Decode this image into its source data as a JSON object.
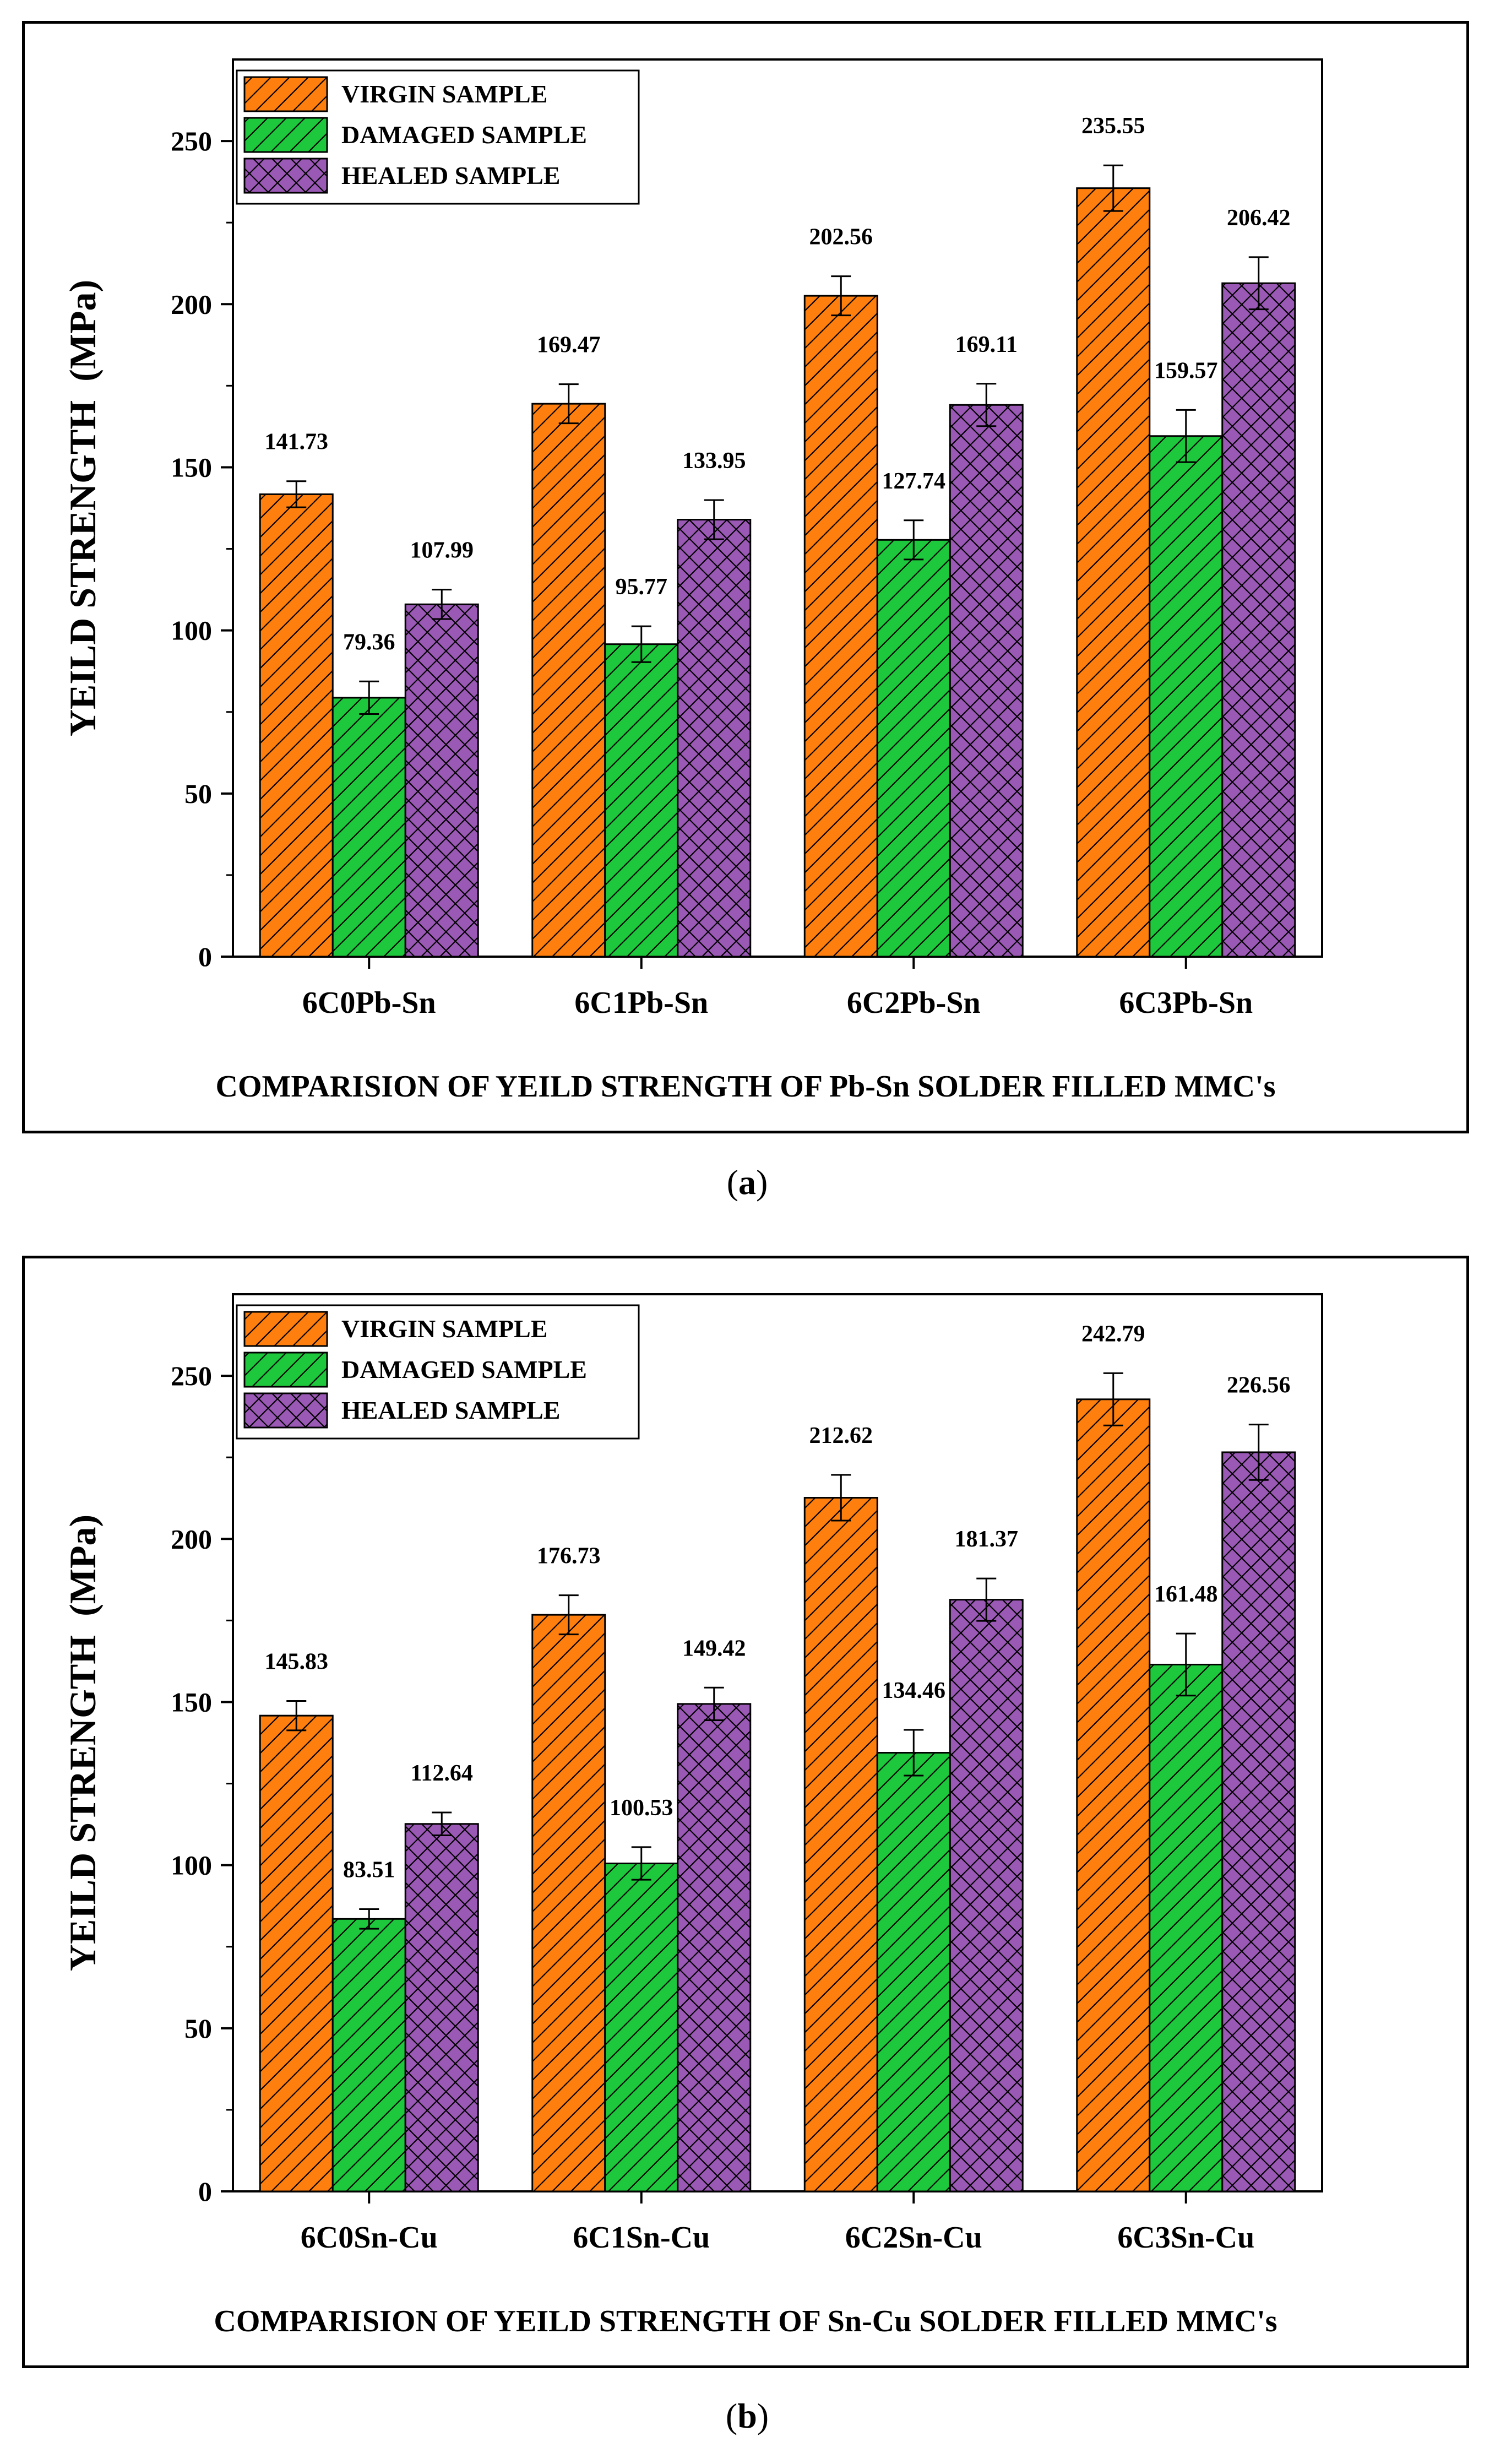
{
  "panels": {
    "a": {
      "caption_label": "a"
    },
    "b": {
      "caption_label": "b"
    }
  },
  "chart_data": [
    {
      "type": "bar",
      "title": "",
      "xlabel": "COMPARISION OF YEILD STRENGTH OF Pb-Sn SOLDER FILLED MMC's",
      "ylabel": "YEILD STRENGTH  (MPa)",
      "ylim": [
        0,
        275
      ],
      "yticks": [
        0,
        50,
        100,
        150,
        200,
        250
      ],
      "categories": [
        "6C0Pb-Sn",
        "6C1Pb-Sn",
        "6C2Pb-Sn",
        "6C3Pb-Sn"
      ],
      "legend_position": "top-left",
      "series": [
        {
          "name": "VIRGIN SAMPLE",
          "color": "#ff7f0e",
          "hatch": "diagonal",
          "values": [
            141.73,
            169.47,
            202.56,
            235.55
          ],
          "errors": [
            4,
            6,
            6,
            7
          ],
          "labels": [
            "141.73",
            "169.47",
            "202.56",
            "235.55"
          ]
        },
        {
          "name": "DAMAGED SAMPLE",
          "color": "#1ec83c",
          "hatch": "diagonal",
          "values": [
            79.36,
            95.77,
            127.74,
            159.57
          ],
          "errors": [
            5,
            5.5,
            6,
            8
          ],
          "labels": [
            "79.36",
            "95.77",
            "127.74",
            "159.57"
          ]
        },
        {
          "name": "HEALED SAMPLE",
          "color": "#9b59b6",
          "hatch": "crosshatch",
          "values": [
            107.99,
            133.95,
            169.11,
            206.42
          ],
          "errors": [
            4.5,
            6,
            6.5,
            8
          ],
          "labels": [
            "107.99",
            "133.95",
            "169.11",
            "206.42"
          ]
        }
      ]
    },
    {
      "type": "bar",
      "title": "",
      "xlabel": "COMPARISION OF YEILD STRENGTH OF Sn-Cu SOLDER FILLED MMC's",
      "ylabel": "YEILD STRENGTH  (MPa)",
      "ylim": [
        0,
        275
      ],
      "yticks": [
        0,
        50,
        100,
        150,
        200,
        250
      ],
      "categories": [
        "6C0Sn-Cu",
        "6C1Sn-Cu",
        "6C2Sn-Cu",
        "6C3Sn-Cu"
      ],
      "legend_position": "top-left",
      "series": [
        {
          "name": "VIRGIN SAMPLE",
          "color": "#ff7f0e",
          "hatch": "diagonal",
          "values": [
            145.83,
            176.73,
            212.62,
            242.79
          ],
          "errors": [
            4.5,
            6,
            7,
            8
          ],
          "labels": [
            "145.83",
            "176.73",
            "212.62",
            "242.79"
          ]
        },
        {
          "name": "DAMAGED SAMPLE",
          "color": "#1ec83c",
          "hatch": "diagonal",
          "values": [
            83.51,
            100.53,
            134.46,
            161.48
          ],
          "errors": [
            3,
            5,
            7,
            9.5
          ],
          "labels": [
            "83.51",
            "100.53",
            "134.46",
            "161.48"
          ]
        },
        {
          "name": "HEALED SAMPLE",
          "color": "#9b59b6",
          "hatch": "crosshatch",
          "values": [
            112.64,
            149.42,
            181.37,
            226.56
          ],
          "errors": [
            3.5,
            5,
            6.5,
            8.5
          ],
          "labels": [
            "112.64",
            "149.42",
            "181.37",
            "226.56"
          ]
        }
      ]
    }
  ]
}
